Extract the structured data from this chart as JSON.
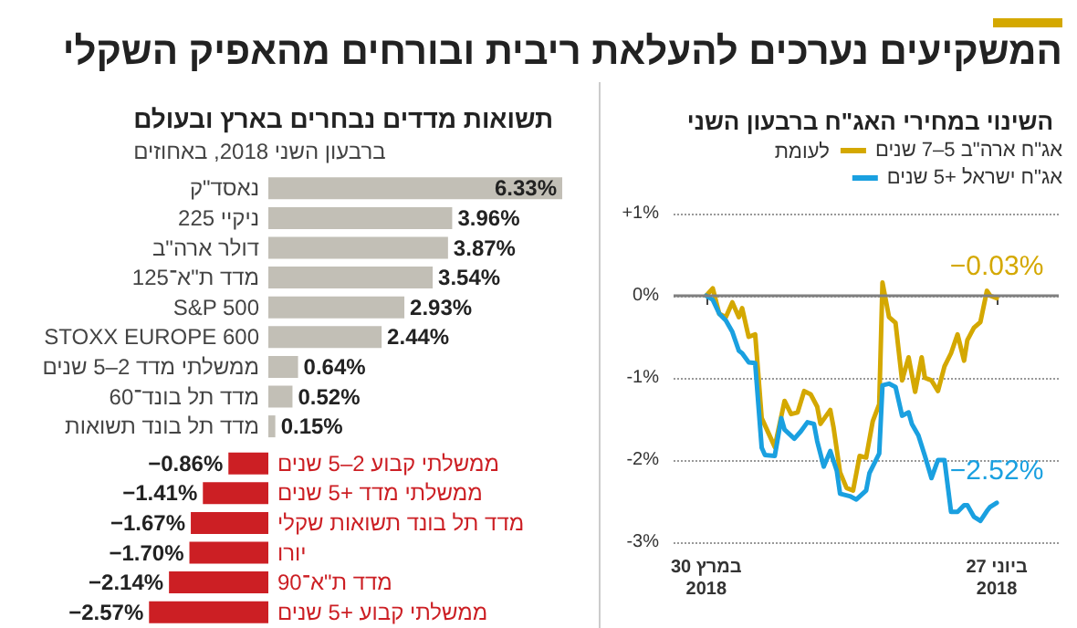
{
  "chart_data": [
    {
      "type": "other",
      "title": "המשקיעים נערכים להעלאת ריבית ובורחים מהאפיק השקלי"
    },
    {
      "type": "line",
      "title": "השינוי במחירי האג\"ח ברבעון השני",
      "legend": "top right",
      "marker": "none",
      "line_style": "solid",
      "grid": "y",
      "annotations": [
        "לעומת",
        {
          "text": "−0.03%",
          "x": "2018-06-27",
          "y": -0.03
        },
        {
          "text": "−2.52%",
          "x": "2018-06-27",
          "y": -2.52
        }
      ],
      "xlim": [
        "2018-03-20",
        "2018-07-16"
      ],
      "xticks": [
        {
          "value": "2018-03-30",
          "label": "30 במרץ\n2018"
        },
        {
          "value": "2018-06-27",
          "label": "27 ביוני\n2018"
        }
      ],
      "ylim": [
        -3,
        1
      ],
      "yticks": [
        {
          "value": -3,
          "label": "-3%"
        },
        {
          "value": -2,
          "label": "-2%"
        },
        {
          "value": -1,
          "label": "-1%"
        },
        {
          "value": 0,
          "label": "0%"
        },
        {
          "value": 1,
          "label": "+1%"
        }
      ],
      "ref_lines": [
        {
          "axis": "y",
          "value": 0,
          "color": "#808080"
        }
      ],
      "series": [
        {
          "name": "אג\"ח ארה\"ב 5–7 שנים",
          "color": "#d4a800",
          "x": [
            "2018-03-30",
            "2018-04-01",
            "2018-04-03",
            "2018-04-05",
            "2018-04-07",
            "2018-04-09",
            "2018-04-10",
            "2018-04-12",
            "2018-04-14",
            "2018-04-16",
            "2018-04-20",
            "2018-04-23",
            "2018-04-25",
            "2018-04-27",
            "2018-04-29",
            "2018-05-01",
            "2018-05-03",
            "2018-05-04",
            "2018-05-07",
            "2018-05-08",
            "2018-05-10",
            "2018-05-12",
            "2018-05-14",
            "2018-05-16",
            "2018-05-18",
            "2018-05-20",
            "2018-05-22",
            "2018-05-23",
            "2018-05-25",
            "2018-05-27",
            "2018-05-29",
            "2018-05-31",
            "2018-06-02",
            "2018-06-04",
            "2018-06-05",
            "2018-06-07",
            "2018-06-09",
            "2018-06-11",
            "2018-06-13",
            "2018-06-15",
            "2018-06-17",
            "2018-06-18",
            "2018-06-20",
            "2018-06-22",
            "2018-06-24",
            "2018-06-25",
            "2018-06-27"
          ],
          "values": [
            0,
            0.09,
            -0.22,
            -0.26,
            -0.08,
            -0.26,
            -0.15,
            -0.5,
            -0.47,
            -1.49,
            -1.84,
            -1.28,
            -1.44,
            -1.42,
            -1.16,
            -1.2,
            -1.35,
            -1.56,
            -1.39,
            -1.6,
            -2.15,
            -2.34,
            -2.37,
            -1.95,
            -1.97,
            -1.53,
            -1.32,
            0.16,
            -0.26,
            -0.33,
            -1.03,
            -0.75,
            -1.17,
            -0.75,
            -1.0,
            -1.03,
            -1.16,
            -0.86,
            -0.7,
            -0.47,
            -0.79,
            -0.54,
            -0.39,
            -0.32,
            0.06,
            0.0,
            -0.03
          ]
        },
        {
          "name": "אג\"ח ישראל +5 שנים",
          "color": "#1aa0e0",
          "x": [
            "2018-03-30",
            "2018-04-01",
            "2018-04-03",
            "2018-04-05",
            "2018-04-07",
            "2018-04-09",
            "2018-04-10",
            "2018-04-12",
            "2018-04-14",
            "2018-04-16",
            "2018-04-17",
            "2018-04-20",
            "2018-04-22",
            "2018-04-23",
            "2018-04-26",
            "2018-04-28",
            "2018-04-30",
            "2018-05-02",
            "2018-05-03",
            "2018-05-05",
            "2018-05-07",
            "2018-05-09",
            "2018-05-10",
            "2018-05-13",
            "2018-05-15",
            "2018-05-18",
            "2018-05-19",
            "2018-05-22",
            "2018-05-23",
            "2018-05-25",
            "2018-05-27",
            "2018-05-29",
            "2018-05-31",
            "2018-06-01",
            "2018-06-03",
            "2018-06-05",
            "2018-06-07",
            "2018-06-09",
            "2018-06-11",
            "2018-06-13",
            "2018-06-15",
            "2018-06-17",
            "2018-06-18",
            "2018-06-20",
            "2018-06-22",
            "2018-06-24",
            "2018-06-25",
            "2018-06-27"
          ],
          "values": [
            0,
            -0.05,
            -0.22,
            -0.3,
            -0.44,
            -0.67,
            -0.7,
            -0.81,
            -0.82,
            -1.85,
            -1.94,
            -1.95,
            -1.49,
            -1.63,
            -1.74,
            -1.65,
            -1.54,
            -1.56,
            -1.77,
            -2.08,
            -1.89,
            -2.13,
            -2.41,
            -2.44,
            -2.48,
            -2.37,
            -2.16,
            -1.92,
            -1.09,
            -1.07,
            -1.11,
            -1.46,
            -1.42,
            -1.56,
            -1.7,
            -1.95,
            -2.22,
            -2.0,
            -2.0,
            -2.63,
            -2.63,
            -2.55,
            -2.55,
            -2.69,
            -2.74,
            -2.62,
            -2.57,
            -2.52
          ]
        }
      ]
    },
    {
      "type": "bar",
      "orientation": "horizontal",
      "title": "תשואות מדדים נבחרים בארץ ובעולם",
      "subtitle": "ברבעון השני 2018, באחוזים",
      "categories": [
        "נאסד\"ק",
        "ניקיי 225",
        "דולר ארה\"ב",
        "מדד ת\"א־125",
        "S&P 500",
        "STOXX EUROPE 600",
        "ממשלתי מדד 2–5 שנים",
        "מדד תל בונד־60",
        "מדד תל בונד תשואות",
        "ממשלתי קבוע 2–5 שנים",
        "ממשלתי מדד +5 שנים",
        "מדד תל בונד תשואות שקלי",
        "יורו",
        "מדד ת\"א־90",
        "ממשלתי קבוע +5 שנים"
      ],
      "values": [
        6.33,
        3.96,
        3.87,
        3.54,
        2.93,
        2.44,
        0.64,
        0.52,
        0.15,
        -0.86,
        -1.41,
        -1.67,
        -1.7,
        -2.14,
        -2.57
      ],
      "colors": [
        "#c2bfb6",
        "#c2bfb6",
        "#c2bfb6",
        "#c2bfb6",
        "#c2bfb6",
        "#c2bfb6",
        "#c2bfb6",
        "#c2bfb6",
        "#c2bfb6",
        "#cc1f24",
        "#cc1f24",
        "#cc1f24",
        "#cc1f24",
        "#cc1f24",
        "#cc1f24"
      ],
      "value_labels": [
        "6.33%",
        "3.96%",
        "3.87%",
        "3.54%",
        "2.93%",
        "2.44%",
        "0.64%",
        "0.52%",
        "0.15%",
        "−0.86%",
        "−1.41%",
        "−1.67%",
        "−1.70%",
        "−2.14%",
        "−2.57%"
      ]
    }
  ]
}
